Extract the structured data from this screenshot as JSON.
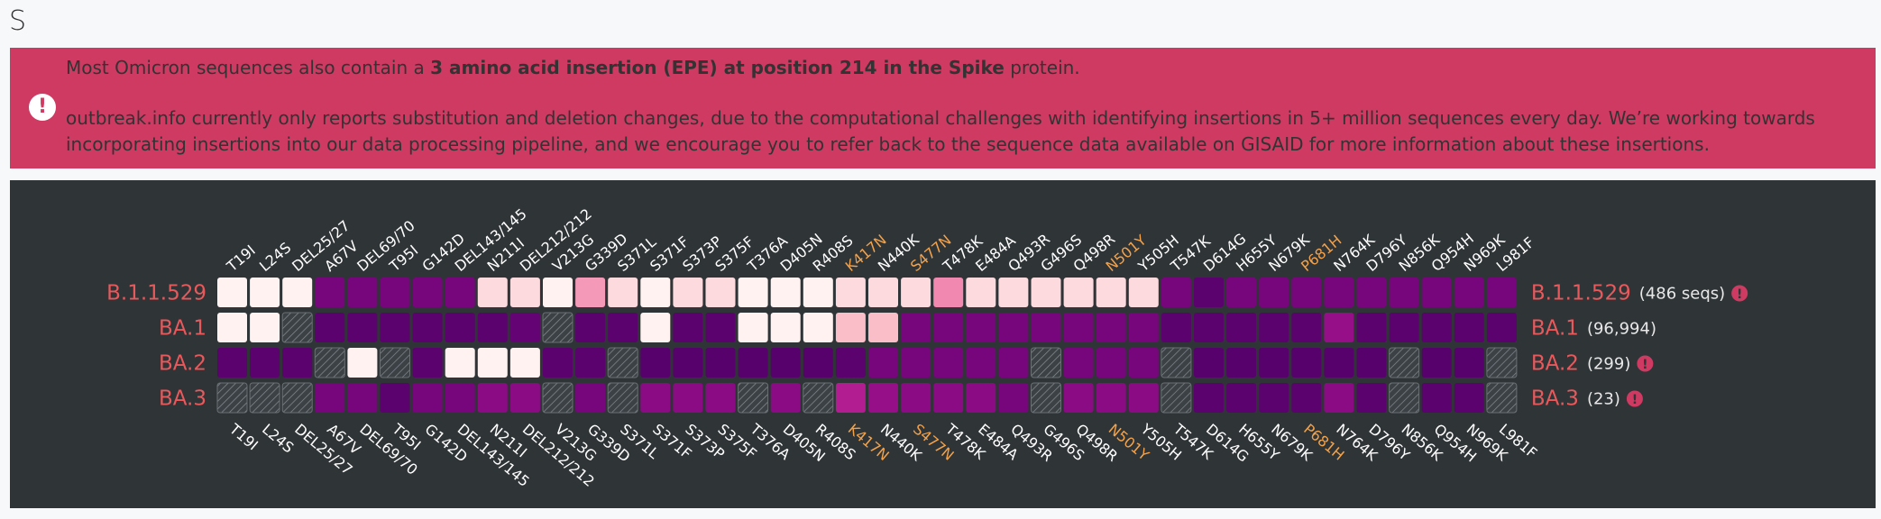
{
  "section_title": "S",
  "alert": {
    "icon": "exclamation-circle-icon",
    "line1_pre": "Most Omicron sequences also contain a ",
    "line1_bold": "3 amino acid insertion (EPE) at position 214 in the Spike",
    "line1_post": " protein.",
    "paragraph": "outbreak.info currently only reports substitution and deletion changes, due to the computational challenges with identifying insertions in 5+ million sequences every day. We’re working towards incorporating insertions into our data processing pipeline, and we encourage you to refer back to the sequence data available on GISAID for more information about these insertions."
  },
  "colors": {
    "lineage_label": "#e8595c",
    "highlight_mutation": "#f3a24a",
    "mutation_label": "#ffffff",
    "background": "#2f3437",
    "warning_icon": "#cf3a62"
  },
  "chart_data": {
    "type": "heatmap",
    "value_meaning": "mutation prevalence; null = no data",
    "mutations": [
      "T19I",
      "L24S",
      "DEL25/27",
      "A67V",
      "DEL69/70",
      "T95I",
      "G142D",
      "DEL143/145",
      "N211I",
      "DEL212/212",
      "V213G",
      "G339D",
      "S371L",
      "S371F",
      "S373P",
      "S375F",
      "T376A",
      "D405N",
      "R408S",
      "K417N",
      "N440K",
      "S477N",
      "T478K",
      "E484A",
      "Q493R",
      "G496S",
      "Q498R",
      "N501Y",
      "Y505H",
      "T547K",
      "D614G",
      "H655Y",
      "N679K",
      "P681H",
      "N764K",
      "D796Y",
      "N856K",
      "Q954H",
      "N969K",
      "L981F"
    ],
    "highlighted_mutations": [
      "K417N",
      "S477N",
      "N501Y",
      "P681H"
    ],
    "lineages": [
      {
        "name": "B.1.1.529",
        "count": "(486 seqs)",
        "warning": true,
        "values": [
          0.02,
          0.02,
          0.02,
          0.96,
          0.96,
          0.96,
          0.96,
          0.96,
          0.15,
          0.15,
          0.02,
          0.4,
          0.15,
          0.02,
          0.15,
          0.15,
          0.02,
          0.02,
          0.02,
          0.15,
          0.15,
          0.15,
          0.45,
          0.15,
          0.15,
          0.15,
          0.15,
          0.15,
          0.15,
          0.96,
          0.99,
          0.96,
          0.96,
          0.96,
          0.96,
          0.96,
          0.96,
          0.96,
          0.96,
          0.96
        ]
      },
      {
        "name": "BA.1",
        "count": "(96,994)",
        "warning": false,
        "values": [
          0.02,
          0.02,
          null,
          0.99,
          0.99,
          0.99,
          0.99,
          0.99,
          0.99,
          0.98,
          null,
          0.99,
          0.99,
          0.02,
          0.99,
          0.99,
          0.02,
          0.02,
          0.02,
          0.3,
          0.3,
          0.96,
          0.96,
          0.96,
          0.96,
          0.96,
          0.96,
          0.96,
          0.96,
          0.99,
          0.99,
          0.99,
          0.99,
          0.99,
          0.88,
          0.99,
          0.99,
          0.99,
          0.99,
          0.99
        ]
      },
      {
        "name": "BA.2",
        "count": "(299)",
        "warning": true,
        "values": [
          0.99,
          0.99,
          0.99,
          null,
          0.02,
          null,
          0.99,
          0.02,
          0.02,
          0.02,
          0.99,
          0.99,
          null,
          0.995,
          0.995,
          0.995,
          0.995,
          0.995,
          0.995,
          0.99,
          0.96,
          0.96,
          0.96,
          0.96,
          0.96,
          null,
          0.96,
          0.96,
          0.96,
          null,
          0.995,
          0.995,
          0.995,
          0.995,
          0.995,
          0.995,
          null,
          0.995,
          0.995,
          null
        ]
      },
      {
        "name": "BA.3",
        "count": "(23)",
        "warning": true,
        "values": [
          null,
          null,
          null,
          0.96,
          0.96,
          0.99,
          0.96,
          0.96,
          0.92,
          0.92,
          null,
          0.96,
          null,
          0.92,
          0.92,
          0.92,
          null,
          0.92,
          null,
          0.8,
          0.88,
          0.92,
          0.92,
          0.92,
          0.96,
          null,
          0.92,
          0.92,
          0.92,
          null,
          0.99,
          0.99,
          0.99,
          0.99,
          0.92,
          0.99,
          null,
          0.99,
          0.99,
          null
        ]
      }
    ]
  }
}
